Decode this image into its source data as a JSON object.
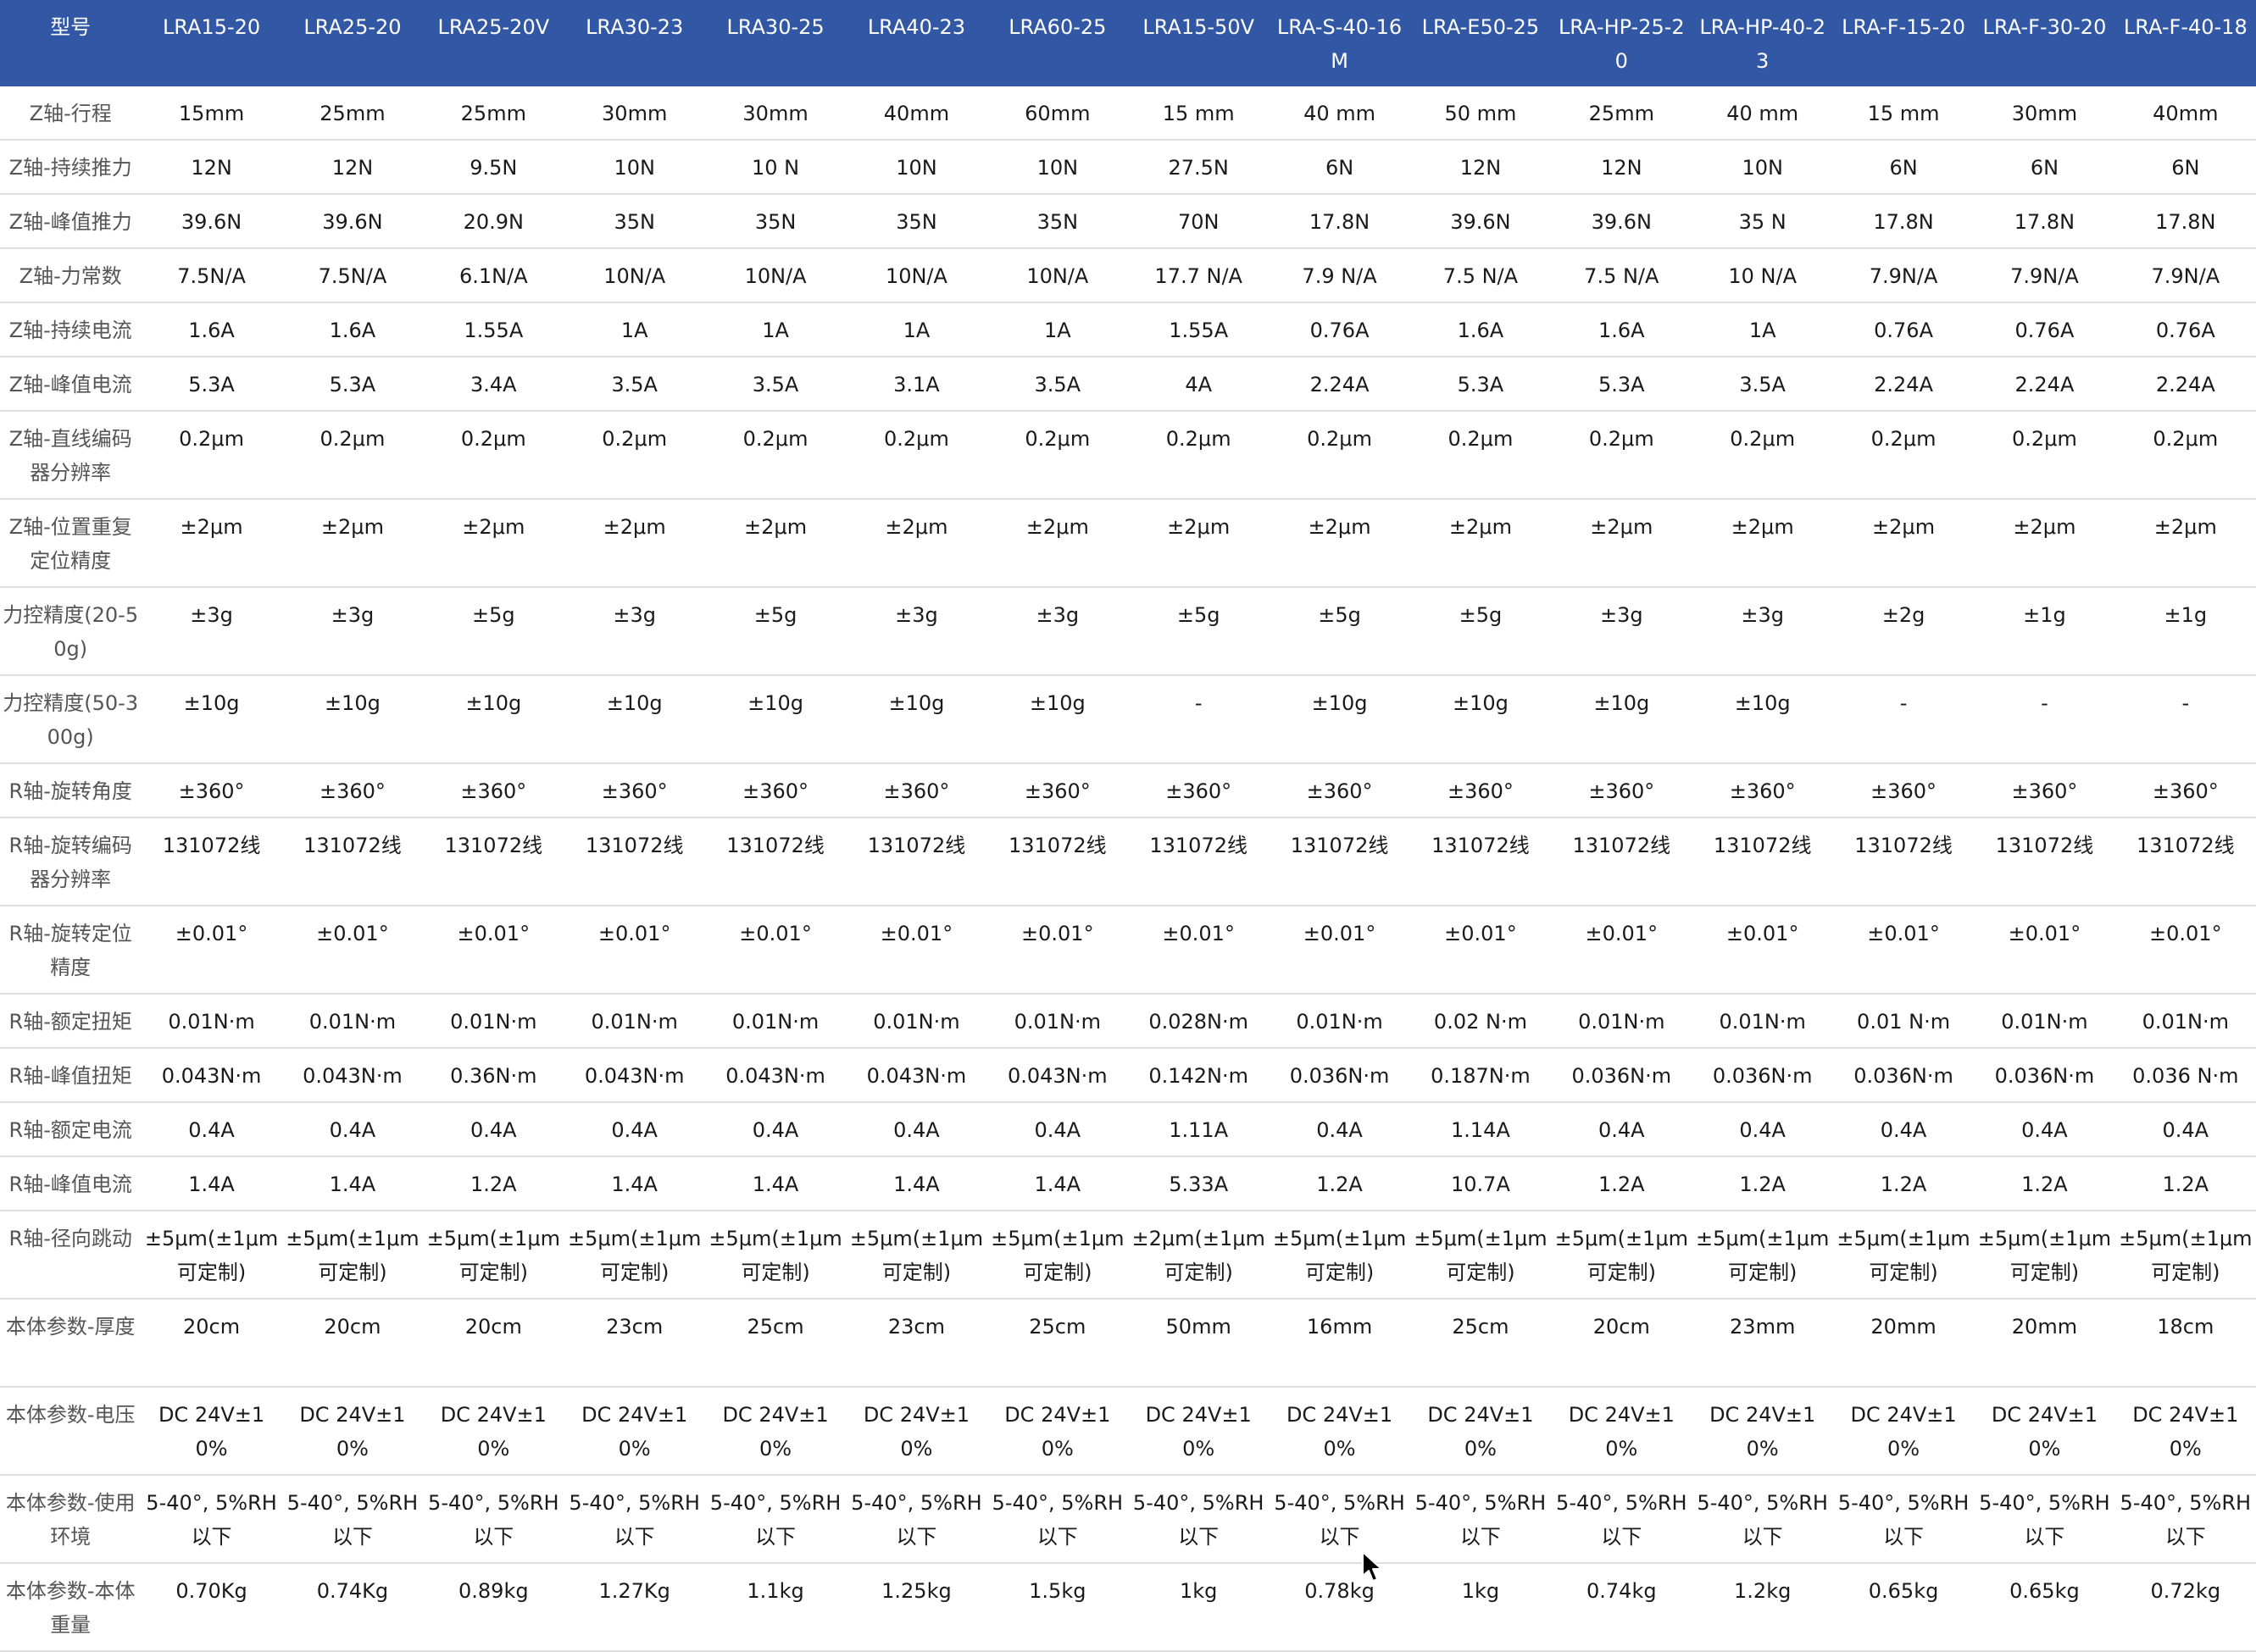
{
  "table": {
    "corner": "型号",
    "models": [
      "LRA15-20",
      "LRA25-20",
      "LRA25-20V",
      "LRA30-23",
      "LRA30-25",
      "LRA40-23",
      "LRA60-25",
      "LRA15-50V",
      "LRA-S-40-16M",
      "LRA-E50-25",
      "LRA-HP-25-20",
      "LRA-HP-40-23",
      "LRA-F-15-20",
      "LRA-F-30-20",
      "LRA-F-40-18"
    ],
    "rows": [
      {
        "label": "Z轴-行程",
        "values": [
          "15mm",
          "25mm",
          "25mm",
          "30mm",
          "30mm",
          "40mm",
          "60mm",
          "15 mm",
          "40 mm",
          "50 mm",
          "25mm",
          "40 mm",
          "15 mm",
          "30mm",
          "40mm"
        ]
      },
      {
        "label": "Z轴-持续推力",
        "values": [
          "12N",
          "12N",
          "9.5N",
          "10N",
          "10 N",
          "10N",
          "10N",
          "27.5N",
          "6N",
          "12N",
          "12N",
          "10N",
          "6N",
          "6N",
          "6N"
        ]
      },
      {
        "label": "Z轴-峰值推力",
        "values": [
          "39.6N",
          "39.6N",
          "20.9N",
          "35N",
          "35N",
          "35N",
          "35N",
          "70N",
          "17.8N",
          "39.6N",
          "39.6N",
          "35 N",
          "17.8N",
          "17.8N",
          "17.8N"
        ]
      },
      {
        "label": "Z轴-力常数",
        "values": [
          "7.5N/A",
          "7.5N/A",
          "6.1N/A",
          "10N/A",
          "10N/A",
          "10N/A",
          "10N/A",
          "17.7 N/A",
          "7.9 N/A",
          "7.5 N/A",
          "7.5 N/A",
          "10 N/A",
          "7.9N/A",
          "7.9N/A",
          "7.9N/A"
        ]
      },
      {
        "label": "Z轴-持续电流",
        "values": [
          "1.6A",
          "1.6A",
          "1.55A",
          "1A",
          "1A",
          "1A",
          "1A",
          "1.55A",
          "0.76A",
          "1.6A",
          "1.6A",
          "1A",
          "0.76A",
          "0.76A",
          "0.76A"
        ]
      },
      {
        "label": "Z轴-峰值电流",
        "values": [
          "5.3A",
          "5.3A",
          "3.4A",
          "3.5A",
          "3.5A",
          "3.1A",
          "3.5A",
          "4A",
          "2.24A",
          "5.3A",
          "5.3A",
          "3.5A",
          "2.24A",
          "2.24A",
          "2.24A"
        ]
      },
      {
        "label": "Z轴-直线编码器分辨率",
        "values": [
          "0.2μm",
          "0.2μm",
          "0.2μm",
          "0.2μm",
          "0.2μm",
          "0.2μm",
          "0.2μm",
          "0.2μm",
          "0.2μm",
          "0.2μm",
          "0.2μm",
          "0.2μm",
          "0.2μm",
          "0.2μm",
          "0.2μm"
        ]
      },
      {
        "label": "Z轴-位置重复定位精度",
        "values": [
          "±2μm",
          "±2μm",
          "±2μm",
          "±2μm",
          "±2μm",
          "±2μm",
          "±2μm",
          "±2μm",
          "±2μm",
          "±2μm",
          "±2μm",
          "±2μm",
          "±2μm",
          "±2μm",
          "±2μm"
        ]
      },
      {
        "label": "力控精度(20-50g)",
        "values": [
          "±3g",
          "±3g",
          "±5g",
          "±3g",
          "±5g",
          "±3g",
          "±3g",
          "±5g",
          "±5g",
          "±5g",
          "±3g",
          "±3g",
          "±2g",
          "±1g",
          "±1g"
        ]
      },
      {
        "label": "力控精度(50-300g)",
        "values": [
          "±10g",
          "±10g",
          "±10g",
          "±10g",
          "±10g",
          "±10g",
          "±10g",
          "-",
          "±10g",
          "±10g",
          "±10g",
          "±10g",
          "-",
          "-",
          "-"
        ]
      },
      {
        "label": "R轴-旋转角度",
        "values": [
          "±360°",
          "±360°",
          "±360°",
          "±360°",
          "±360°",
          "±360°",
          "±360°",
          "±360°",
          "±360°",
          "±360°",
          "±360°",
          "±360°",
          "±360°",
          "±360°",
          "±360°"
        ]
      },
      {
        "label": "R轴-旋转编码器分辨率",
        "values": [
          "131072线",
          "131072线",
          "131072线",
          "131072线",
          "131072线",
          "131072线",
          "131072线",
          "131072线",
          "131072线",
          "131072线",
          "131072线",
          "131072线",
          "131072线",
          "131072线",
          "131072线"
        ]
      },
      {
        "label": "R轴-旋转定位精度",
        "values": [
          "±0.01°",
          "±0.01°",
          "±0.01°",
          "±0.01°",
          "±0.01°",
          "±0.01°",
          "±0.01°",
          "±0.01°",
          "±0.01°",
          "±0.01°",
          "±0.01°",
          "±0.01°",
          "±0.01°",
          "±0.01°",
          "±0.01°"
        ]
      },
      {
        "label": "R轴-额定扭矩",
        "values": [
          "0.01N·m",
          "0.01N·m",
          "0.01N·m",
          "0.01N·m",
          "0.01N·m",
          "0.01N·m",
          "0.01N·m",
          "0.028N·m",
          "0.01N·m",
          "0.02 N·m",
          "0.01N·m",
          "0.01N·m",
          "0.01 N·m",
          "0.01N·m",
          "0.01N·m"
        ]
      },
      {
        "label": "R轴-峰值扭矩",
        "values": [
          "0.043N·m",
          "0.043N·m",
          "0.36N·m",
          "0.043N·m",
          "0.043N·m",
          "0.043N·m",
          "0.043N·m",
          "0.142N·m",
          "0.036N·m",
          "0.187N·m",
          "0.036N·m",
          "0.036N·m",
          "0.036N·m",
          "0.036N·m",
          "0.036 N·m"
        ]
      },
      {
        "label": "R轴-额定电流",
        "values": [
          "0.4A",
          "0.4A",
          "0.4A",
          "0.4A",
          "0.4A",
          "0.4A",
          "0.4A",
          "1.11A",
          "0.4A",
          "1.14A",
          "0.4A",
          "0.4A",
          "0.4A",
          "0.4A",
          "0.4A"
        ]
      },
      {
        "label": "R轴-峰值电流",
        "values": [
          "1.4A",
          "1.4A",
          "1.2A",
          "1.4A",
          "1.4A",
          "1.4A",
          "1.4A",
          "5.33A",
          "1.2A",
          "10.7A",
          "1.2A",
          "1.2A",
          "1.2A",
          "1.2A",
          "1.2A"
        ]
      },
      {
        "label": "R轴-径向跳动",
        "values": [
          "±5μm(±1μm可定制)",
          "±5μm(±1μm可定制)",
          "±5μm(±1μm可定制)",
          "±5μm(±1μm可定制)",
          "±5μm(±1μm可定制)",
          "±5μm(±1μm可定制)",
          "±5μm(±1μm可定制)",
          "±2μm(±1μm可定制)",
          "±5μm(±1μm可定制)",
          "±5μm(±1μm可定制)",
          "±5μm(±1μm可定制)",
          "±5μm(±1μm可定制)",
          "±5μm(±1μm可定制)",
          "±5μm(±1μm可定制)",
          "±5μm(±1μm可定制)"
        ]
      },
      {
        "label": "本体参数-厚度",
        "values": [
          "20cm",
          "20cm",
          "20cm",
          "23cm",
          "25cm",
          "23cm",
          "25cm",
          "50mm",
          "16mm",
          "25cm",
          "20cm",
          "23mm",
          "20mm",
          "20mm",
          "18cm"
        ]
      },
      {
        "label": "本体参数-电压",
        "values": [
          "DC 24V±10%",
          "DC 24V±10%",
          "DC 24V±10%",
          "DC 24V±10%",
          "DC 24V±10%",
          "DC 24V±10%",
          "DC 24V±10%",
          "DC 24V±10%",
          "DC 24V±10%",
          "DC 24V±10%",
          "DC 24V±10%",
          "DC 24V±10%",
          "DC 24V±10%",
          "DC 24V±10%",
          "DC 24V±10%"
        ]
      },
      {
        "label": "本体参数-使用环境",
        "values": [
          "5-40°, 5%RH以下",
          "5-40°, 5%RH以下",
          "5-40°, 5%RH以下",
          "5-40°, 5%RH以下",
          "5-40°, 5%RH以下",
          "5-40°, 5%RH以下",
          "5-40°, 5%RH以下",
          "5-40°, 5%RH以下",
          "5-40°, 5%RH以下",
          "5-40°, 5%RH以下",
          "5-40°, 5%RH以下",
          "5-40°, 5%RH以下",
          "5-40°, 5%RH以下",
          "5-40°, 5%RH以下",
          "5-40°, 5%RH以下"
        ]
      },
      {
        "label": "本体参数-本体重量",
        "values": [
          "0.70Kg",
          "0.74Kg",
          "0.89kg",
          "1.27Kg",
          "1.1kg",
          "1.25kg",
          "1.5kg",
          "1kg",
          "0.78kg",
          "1kg",
          "0.74kg",
          "1.2kg",
          "0.65kg",
          "0.65kg",
          "0.72kg"
        ]
      }
    ]
  }
}
